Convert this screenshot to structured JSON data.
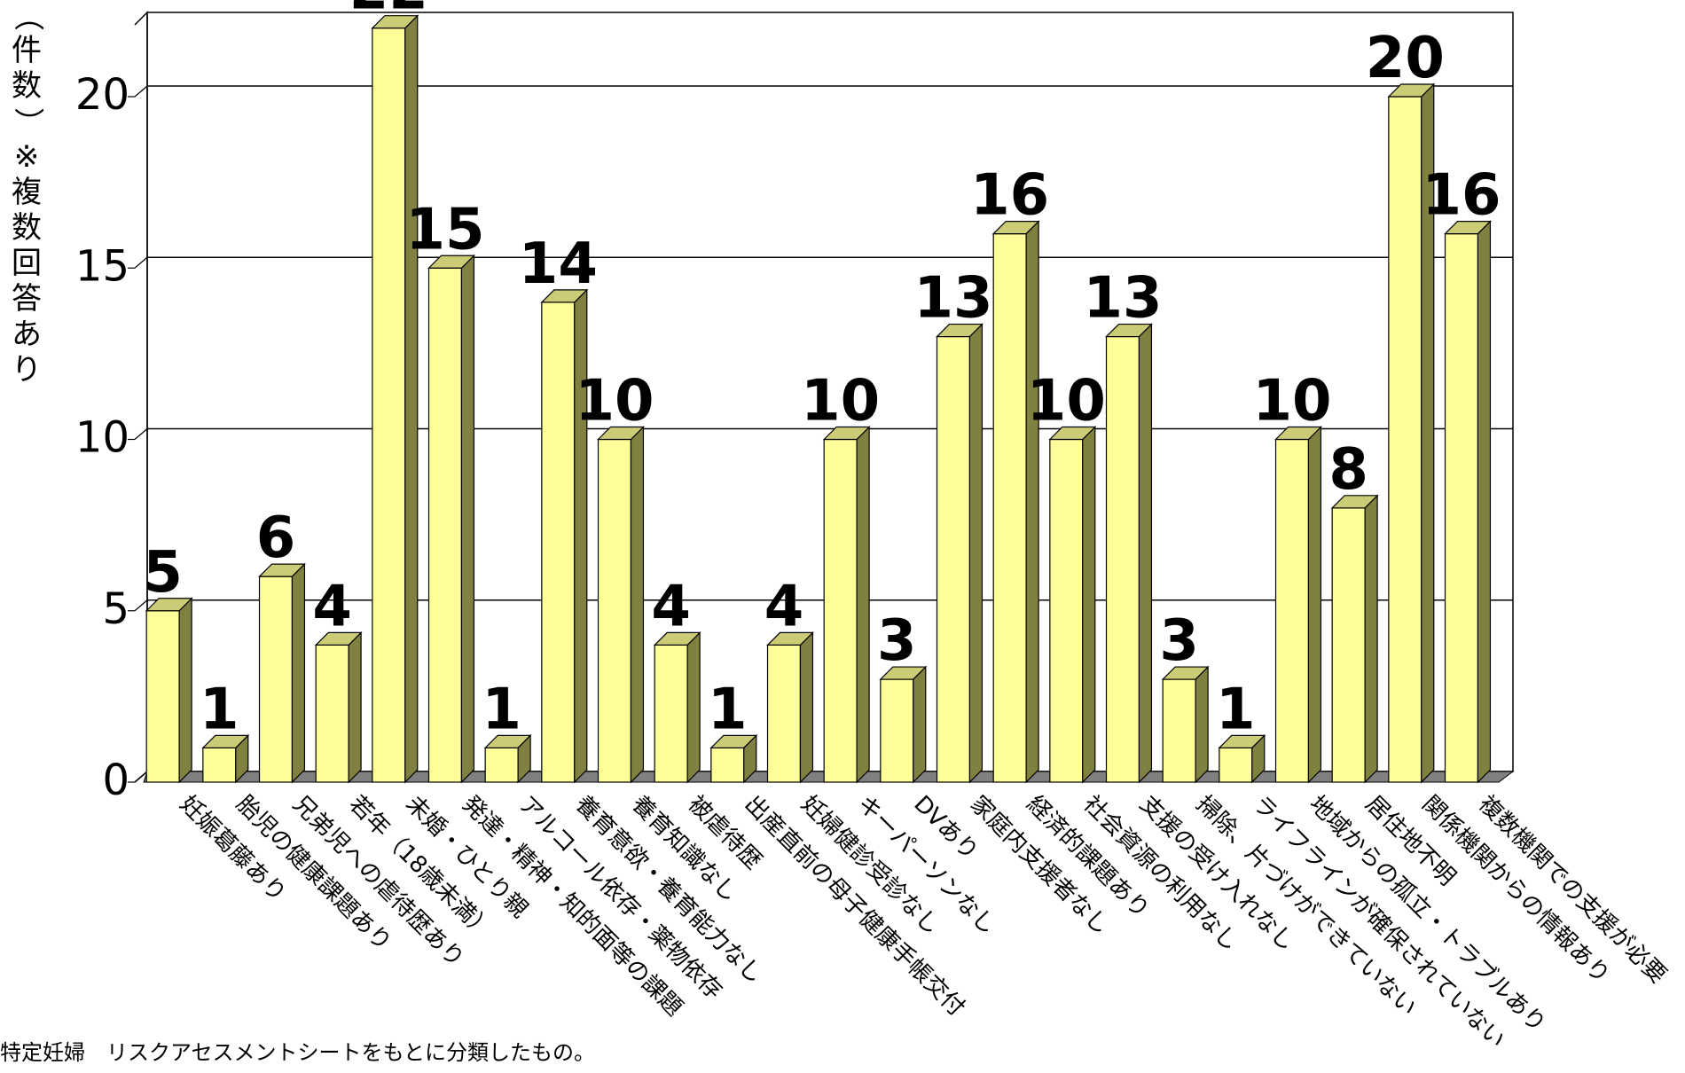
{
  "chart_data": {
    "type": "bar",
    "ylabel": "（件数）※複数回答あり",
    "ylim": [
      0,
      22
    ],
    "yticks": [
      0,
      5,
      10,
      15,
      20
    ],
    "grid": true,
    "bar_color": "#ffff99",
    "bar_side_color": "#808040",
    "bar_top_color": "#cccc77",
    "floor_color": "#808080",
    "categories": [
      "妊娠葛藤あり",
      "胎児の健康課題あり",
      "兄弟児への虐待歴あり",
      "若年（18歳未満）",
      "未婚・ひとり親",
      "発達・精神・知的面等の課題",
      "アルコール依存・薬物依存",
      "養育意欲・養育能力なし",
      "養育知識なし",
      "被虐待歴",
      "出産直前の母子健康手帳交付",
      "妊婦健診受診なし",
      "キーパーソンなし",
      "DVあり",
      "家庭内支援者なし",
      "経済的課題あり",
      "社会資源の利用なし",
      "支援の受け入れなし",
      "掃除、片づけができていない",
      "ライフラインが確保されていない",
      "地域からの孤立・トラブルあり",
      "居住地不明",
      "関係機関からの情報あり",
      "複数機関での支援が必要"
    ],
    "values": [
      5,
      1,
      6,
      4,
      22,
      15,
      1,
      14,
      10,
      4,
      1,
      4,
      10,
      3,
      13,
      16,
      10,
      13,
      3,
      1,
      10,
      8,
      20,
      16
    ]
  },
  "footnote": "特定妊婦　リスクアセスメントシートをもとに分類したもの。"
}
